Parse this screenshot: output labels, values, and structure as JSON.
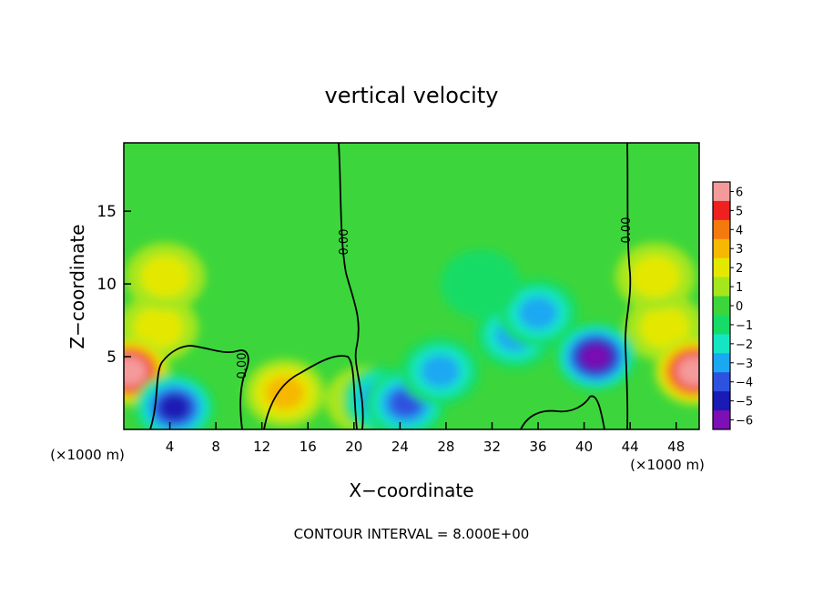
{
  "chart_data": {
    "type": "heatmap",
    "title": "vertical velocity",
    "xlabel": "X−coordinate",
    "ylabel": "Z−coordinate",
    "x_unit_left": "(×1000 m)",
    "x_unit_right": "(×1000 m)",
    "xlim": [
      0,
      50
    ],
    "ylim": [
      0,
      19.7
    ],
    "x_ticks": [
      4,
      8,
      12,
      16,
      20,
      24,
      28,
      32,
      36,
      40,
      44,
      48
    ],
    "y_ticks": [
      5,
      10,
      15
    ],
    "colorbar": {
      "values": [
        6,
        5,
        4,
        3,
        2,
        1,
        0,
        -1,
        -2,
        -3,
        -4,
        -5,
        -6
      ],
      "labels": [
        "6",
        "5",
        "4",
        "3",
        "2",
        "1",
        "0",
        "−1",
        "−2",
        "−3",
        "−4",
        "−5",
        "−6"
      ],
      "colors": [
        "#f49a9a",
        "#ee2020",
        "#f47a10",
        "#f6b800",
        "#e4e800",
        "#a6e61c",
        "#3cd63c",
        "#14dc66",
        "#14e6c4",
        "#1aa8f2",
        "#2e52e0",
        "#1a1ab4",
        "#7c10b4"
      ]
    },
    "contour_labels": [
      {
        "text": "0.00",
        "x": 19.0,
        "z": 13.0
      },
      {
        "text": "0.00",
        "x": 43.9,
        "z": 14.0
      },
      {
        "text": "0.00",
        "x": 10.3,
        "z": 4.0
      }
    ],
    "features": [
      {
        "x": 3.0,
        "z": 7.0,
        "w": 2.4
      },
      {
        "x": 3.6,
        "z": 10.5,
        "w": 1.6
      },
      {
        "x": 47.0,
        "z": 7.0,
        "w": 2.4
      },
      {
        "x": 46.2,
        "z": 10.5,
        "w": 1.6
      },
      {
        "x": 0.5,
        "z": 4.0,
        "w": 6.5
      },
      {
        "x": 49.6,
        "z": 4.0,
        "w": 6.5
      },
      {
        "x": 14.0,
        "z": 2.5,
        "w": 2.5
      },
      {
        "x": 21.0,
        "z": 2.0,
        "w": 2.0
      },
      {
        "x": 4.4,
        "z": 1.5,
        "w": -4.5
      },
      {
        "x": 22.5,
        "z": 2.0,
        "w": -4.0
      },
      {
        "x": 24.5,
        "z": 1.8,
        "w": -3.8
      },
      {
        "x": 27.5,
        "z": 4.0,
        "w": -3.0
      },
      {
        "x": 34.0,
        "z": 6.5,
        "w": -3.2
      },
      {
        "x": 36.0,
        "z": 8.0,
        "w": -2.8
      },
      {
        "x": 41.0,
        "z": 5.0,
        "w": -5.5
      },
      {
        "x": 31.0,
        "z": 10.0,
        "w": -1.0
      }
    ],
    "footer": "CONTOUR INTERVAL = 8.000E+00"
  }
}
